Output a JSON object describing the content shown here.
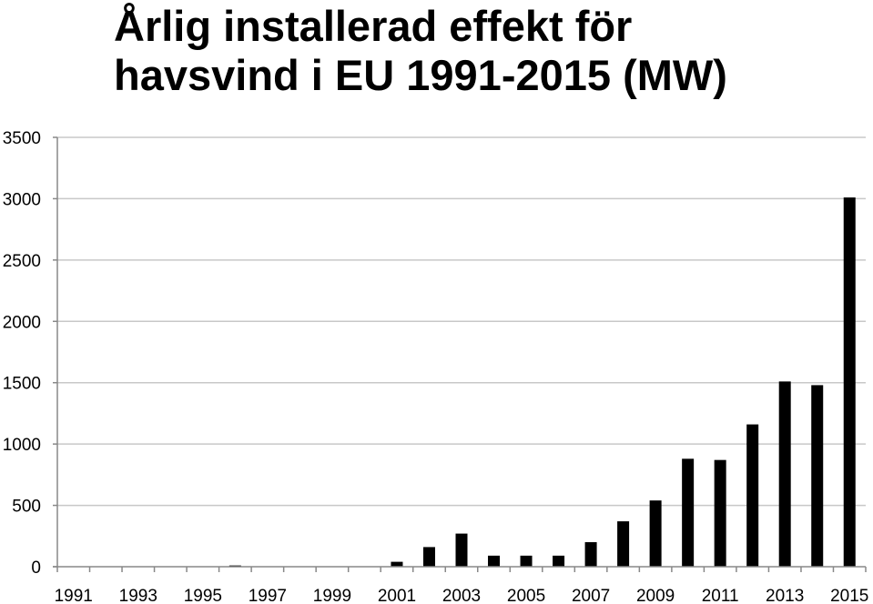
{
  "chart_data": {
    "type": "bar",
    "title_lines": [
      "Årlig installerad effekt för",
      "havsvind i EU 1991-2015 (MW)"
    ],
    "xlabel": "",
    "ylabel": "",
    "x_tick_labels": [
      "1991",
      "1993",
      "1995",
      "1997",
      "1999",
      "2001",
      "2003",
      "2005",
      "2007",
      "2009",
      "2011",
      "2013",
      "2015"
    ],
    "y_tick_labels": [
      "0",
      "500",
      "1000",
      "1500",
      "2000",
      "2500",
      "3000",
      "3500"
    ],
    "ylim": [
      0,
      3500
    ],
    "grid": "horizontal",
    "legend": "none",
    "categories": [
      "1991",
      "1992",
      "1993",
      "1994",
      "1995",
      "1996",
      "1997",
      "1998",
      "1999",
      "2000",
      "2001",
      "2002",
      "2003",
      "2004",
      "2005",
      "2006",
      "2007",
      "2008",
      "2009",
      "2010",
      "2011",
      "2012",
      "2013",
      "2014",
      "2015"
    ],
    "values": [
      0,
      0,
      0,
      0,
      0,
      10,
      0,
      0,
      0,
      0,
      40,
      160,
      270,
      90,
      90,
      90,
      200,
      370,
      540,
      880,
      870,
      1160,
      1510,
      1480,
      3010
    ],
    "colors": {
      "bar": "#000000",
      "grid": "#c8c8c8",
      "axis": "#888888"
    }
  }
}
